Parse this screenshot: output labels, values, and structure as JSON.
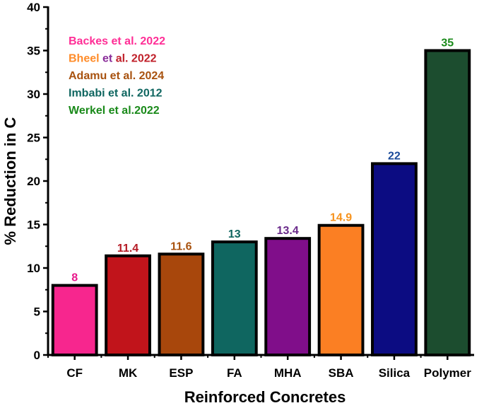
{
  "chart_data": {
    "type": "bar",
    "title": "",
    "xlabel": "Reinforced Concretes",
    "ylabel": "% Reduction in C",
    "ylim": [
      0,
      40
    ],
    "yticks": [
      0,
      5,
      10,
      15,
      20,
      25,
      30,
      35,
      40
    ],
    "ytick_labels": [
      "0",
      "5",
      "10",
      "15",
      "20",
      "25",
      "30",
      "35",
      "40"
    ],
    "categories": [
      "CF",
      "MK",
      "ESP",
      "FA",
      "MHA",
      "SBA",
      "Silica",
      "Polymer"
    ],
    "values": [
      8,
      11.4,
      11.6,
      13,
      13.4,
      14.9,
      22,
      35
    ],
    "value_labels": [
      "8",
      "11.4",
      "11.6",
      "13",
      "13.4",
      "14.9",
      "22",
      "35"
    ],
    "bar_colors": [
      "#f7268e",
      "#c1141b",
      "#a8470c",
      "#0f6660",
      "#800e8a",
      "#fb7f23",
      "#0c0c82",
      "#1c4d2f"
    ],
    "label_colors": [
      "#e8198b",
      "#b51a24",
      "#a8520f",
      "#0f6660",
      "#6a2a8a",
      "#f7931e",
      "#1a4a9a",
      "#1a8a1a"
    ],
    "grid": false,
    "legend_position": "top-left",
    "legend": [
      {
        "parts": [
          {
            "text": "Backes et al. 2022",
            "color": "#ff2e96"
          }
        ]
      },
      {
        "parts": [
          {
            "text": "Bheel",
            "color": "#ff8c2a"
          },
          {
            "text": " et",
            "color": "#8a2d9a"
          },
          {
            "text": " al. 2022",
            "color": "#c0202a"
          }
        ]
      },
      {
        "parts": [
          {
            "text": "Adamu et al. 2024",
            "color": "#a8520f"
          }
        ]
      },
      {
        "parts": [
          {
            "text": "Imbabi et al. 2012",
            "color": "#0f6660"
          }
        ]
      },
      {
        "parts": [
          {
            "text": "Werkel et al.2022",
            "color": "#1a8a1a"
          }
        ]
      }
    ]
  }
}
